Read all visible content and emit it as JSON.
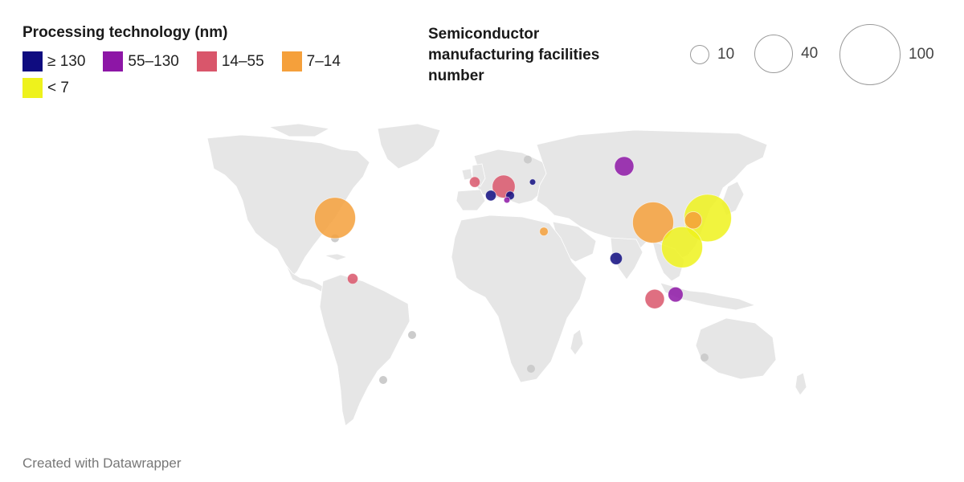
{
  "legend_color": {
    "title": "Processing technology (nm)",
    "items": [
      {
        "label": "≥ 130",
        "color": "#0f0c80"
      },
      {
        "label": "55–130",
        "color": "#8d16a6"
      },
      {
        "label": "14–55",
        "color": "#d9566b"
      },
      {
        "label": "7–14",
        "color": "#f5a03b"
      },
      {
        "label": "< 7",
        "color": "#eef21c"
      }
    ]
  },
  "legend_size": {
    "title": "Semiconductor manufacturing facilities number",
    "items": [
      {
        "label": "10",
        "value": 10
      },
      {
        "label": "40",
        "value": 40
      },
      {
        "label": "100",
        "value": 100
      }
    ]
  },
  "map": {
    "land_color": "#e6e6e6",
    "border_color": "#ffffff",
    "bubbles": [
      {
        "region": "United States",
        "lon": -95,
        "lat": 37,
        "value": 45,
        "category": "7–14"
      },
      {
        "region": "Central America",
        "lon": -84,
        "lat": 10,
        "value": 3,
        "category": "14–55"
      },
      {
        "region": "Ireland",
        "lon": -8,
        "lat": 53,
        "value": 3,
        "category": "14–55"
      },
      {
        "region": "Germany",
        "lon": 10,
        "lat": 51,
        "value": 14,
        "category": "14–55"
      },
      {
        "region": "France",
        "lon": 2,
        "lat": 47,
        "value": 3,
        "category": "≥ 130"
      },
      {
        "region": "Austria",
        "lon": 14,
        "lat": 47,
        "value": 2,
        "category": "≥ 130"
      },
      {
        "region": "Italy",
        "lon": 12,
        "lat": 45,
        "value": 1,
        "category": "55–130"
      },
      {
        "region": "Belarus",
        "lon": 28,
        "lat": 53,
        "value": 1,
        "category": "≥ 130"
      },
      {
        "region": "Russia",
        "lon": 85,
        "lat": 60,
        "value": 10,
        "category": "55–130"
      },
      {
        "region": "Israel",
        "lon": 35,
        "lat": 31,
        "value": 2,
        "category": "7–14"
      },
      {
        "region": "India",
        "lon": 80,
        "lat": 19,
        "value": 4,
        "category": "≥ 130"
      },
      {
        "region": "China",
        "lon": 103,
        "lat": 35,
        "value": 45,
        "category": "7–14"
      },
      {
        "region": "South Korea",
        "lon": 128,
        "lat": 36,
        "value": 8,
        "category": "7–14"
      },
      {
        "region": "Japan",
        "lon": 137,
        "lat": 37,
        "value": 60,
        "category": "< 7"
      },
      {
        "region": "Taiwan",
        "lon": 121,
        "lat": 24,
        "value": 45,
        "category": "< 7"
      },
      {
        "region": "Singapore",
        "lon": 104,
        "lat": 1,
        "value": 10,
        "category": "14–55"
      },
      {
        "region": "Philippines",
        "lon": 117,
        "lat": 3,
        "value": 6,
        "category": "55–130"
      }
    ],
    "empty_markers": [
      {
        "lon": 25,
        "lat": 63
      },
      {
        "lon": -95,
        "lat": 28
      },
      {
        "lon": -47,
        "lat": -15
      },
      {
        "lon": -65,
        "lat": -35
      },
      {
        "lon": 27,
        "lat": -30
      },
      {
        "lon": 135,
        "lat": -25
      }
    ]
  },
  "footer": "Created with Datawrapper"
}
